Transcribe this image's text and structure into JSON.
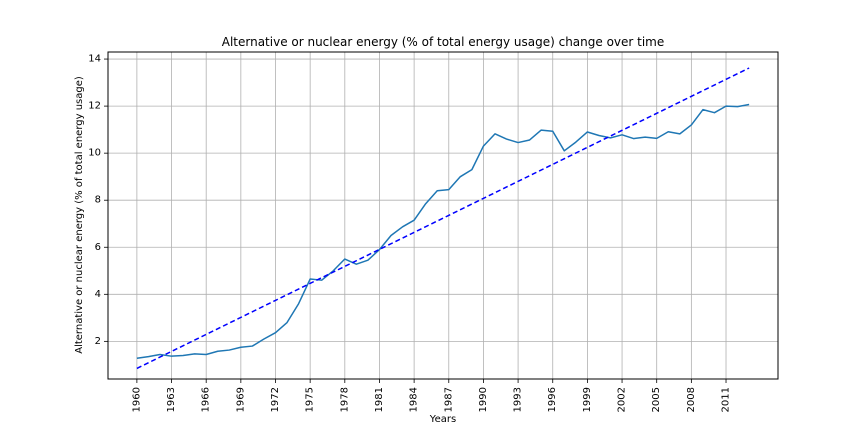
{
  "chart_data": {
    "type": "line",
    "title": "Alternative or nuclear energy (% of total energy usage) change over time",
    "xlabel": "Years",
    "ylabel": "Alternative or nuclear energy (% of total energy usage)",
    "xlim": [
      1957.5,
      2015.5
    ],
    "ylim": [
      0.4,
      14.3
    ],
    "x_ticks": [
      1960,
      1963,
      1966,
      1969,
      1972,
      1975,
      1978,
      1981,
      1984,
      1987,
      1990,
      1993,
      1996,
      1999,
      2002,
      2005,
      2008,
      2011
    ],
    "y_ticks": [
      2,
      4,
      6,
      8,
      10,
      12,
      14
    ],
    "grid": true,
    "colors": {
      "series": "#1f77b4",
      "trend": "#0000ff",
      "grid": "#b0b0b0"
    },
    "series": [
      {
        "x": [
          1960,
          1961,
          1962,
          1963,
          1964,
          1965,
          1966,
          1967,
          1968,
          1969,
          1970,
          1971,
          1972,
          1973,
          1974,
          1975,
          1976,
          1977,
          1978,
          1979,
          1980,
          1981,
          1982,
          1983,
          1984,
          1985,
          1986,
          1987,
          1988,
          1989,
          1990,
          1991,
          1992,
          1993,
          1994,
          1995,
          1996,
          1997,
          1998,
          1999,
          2000,
          2001,
          2002,
          2003,
          2004,
          2005,
          2006,
          2007,
          2008,
          2009,
          2010,
          2011,
          2012,
          2013
        ],
        "values": [
          1.28,
          1.35,
          1.44,
          1.37,
          1.4,
          1.47,
          1.44,
          1.58,
          1.63,
          1.75,
          1.8,
          2.1,
          2.37,
          2.8,
          3.6,
          4.65,
          4.6,
          5.0,
          5.5,
          5.28,
          5.45,
          5.9,
          6.5,
          6.87,
          7.15,
          7.85,
          8.4,
          8.45,
          9.0,
          9.3,
          10.3,
          10.82,
          10.6,
          10.45,
          10.56,
          10.98,
          10.93,
          10.1,
          10.47,
          10.9,
          10.75,
          10.65,
          10.78,
          10.62,
          10.68,
          10.63,
          10.91,
          10.82,
          11.2,
          11.85,
          11.72,
          12.0,
          11.98,
          12.07
        ]
      },
      {
        "x": [
          1960,
          2013
        ],
        "values": [
          0.85,
          13.62
        ]
      }
    ]
  }
}
